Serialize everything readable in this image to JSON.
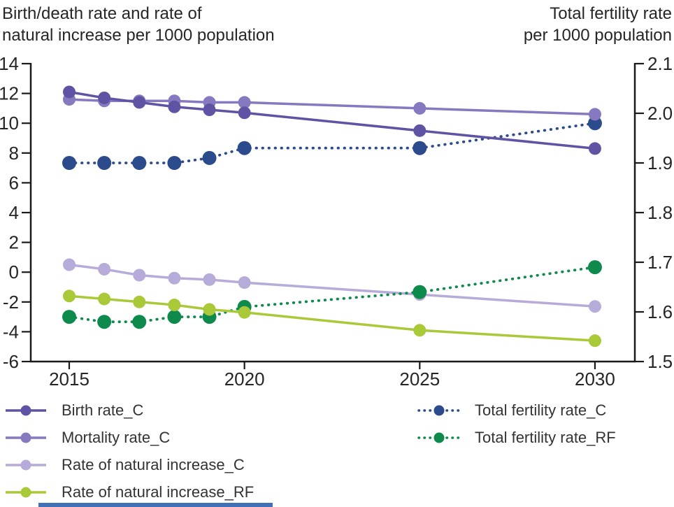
{
  "chart_data": {
    "type": "line",
    "x": [
      2015,
      2016,
      2017,
      2018,
      2019,
      2020,
      2025,
      2030
    ],
    "x_tick_years": [
      2015,
      2020,
      2025,
      2030
    ],
    "x_tick_labels": [
      "2015",
      "2020",
      "2025",
      "2030"
    ],
    "left_axis": {
      "title_lines": [
        "Birth/death rate and rate of",
        "natural increase per 1000 population"
      ],
      "ticks": [
        14,
        12,
        10,
        8,
        6,
        4,
        2,
        0,
        -2,
        -4,
        -6
      ],
      "range": [
        -6,
        14
      ]
    },
    "right_axis": {
      "title_lines": [
        "Total fertility rate",
        "per 1000 population"
      ],
      "ticks": [
        "2.1",
        "2.0",
        "1.9",
        "1.8",
        "1.7",
        "1.6",
        "1.5"
      ],
      "range": [
        1.5,
        2.1
      ]
    },
    "series": [
      {
        "name": "Birth rate_C",
        "axis": "left",
        "style": "solid",
        "color": "#5f54a4",
        "values": [
          12.1,
          11.7,
          11.4,
          11.1,
          10.9,
          10.7,
          9.5,
          8.3
        ]
      },
      {
        "name": "Mortality rate_C",
        "axis": "left",
        "style": "solid",
        "color": "#8679bf",
        "values": [
          11.6,
          11.5,
          11.5,
          11.5,
          11.4,
          11.4,
          11.0,
          10.6
        ]
      },
      {
        "name": "Rate of natural increase_C",
        "axis": "left",
        "style": "solid",
        "color": "#b7abd9",
        "values": [
          0.5,
          0.2,
          -0.2,
          -0.4,
          -0.5,
          -0.7,
          -1.5,
          -2.3
        ]
      },
      {
        "name": "Rate of natural increase_RF",
        "axis": "left",
        "style": "solid",
        "color": "#a9c938",
        "values": [
          -1.6,
          -1.8,
          -2.0,
          -2.2,
          -2.5,
          -2.7,
          -3.9,
          -4.6
        ]
      },
      {
        "name": "Total fertility rate_C",
        "axis": "right",
        "style": "dotted",
        "color": "#2b4b8c",
        "values": [
          1.9,
          1.9,
          1.9,
          1.9,
          1.91,
          1.93,
          1.93,
          1.98
        ]
      },
      {
        "name": "Total fertility rate_RF",
        "axis": "right",
        "style": "dotted",
        "color": "#0e8a4d",
        "values": [
          1.59,
          1.58,
          1.58,
          1.59,
          1.59,
          1.61,
          1.64,
          1.69
        ]
      }
    ],
    "legend": {
      "position": "bottom",
      "columns": 2
    },
    "axis_color": "#1a1a1a"
  },
  "accents": {
    "bottom_strip_color": "#4170b8"
  }
}
